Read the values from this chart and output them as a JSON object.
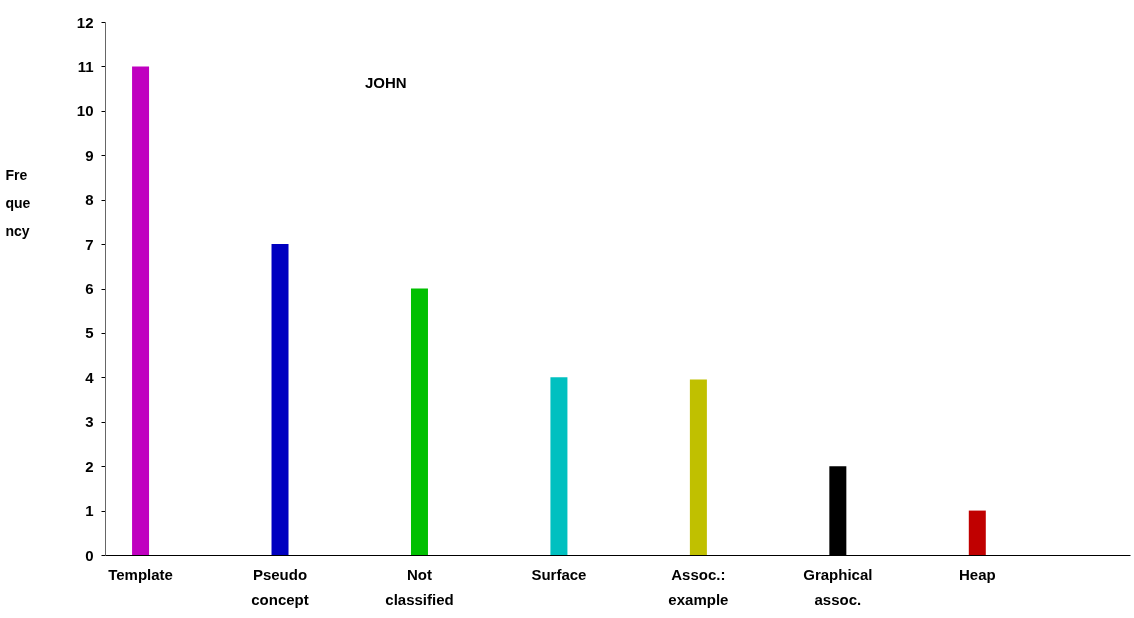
{
  "chart_data": {
    "type": "bar",
    "title": "JOHN",
    "ylabel": "Frequency",
    "categories": [
      "Template",
      "Pseudo concept",
      "Not classified",
      "Surface",
      "Assoc.: example",
      "Graphical assoc.",
      "Heap"
    ],
    "values": [
      11,
      7,
      6,
      4,
      3.95,
      2,
      1
    ],
    "colors": [
      "#c000c0",
      "#0000c0",
      "#00c000",
      "#00c0c0",
      "#c0c000",
      "#000000",
      "#c00000"
    ],
    "ylim": [
      0,
      12
    ],
    "yticks": [
      0,
      1,
      2,
      3,
      4,
      5,
      6,
      7,
      8,
      9,
      10,
      11,
      12
    ]
  }
}
